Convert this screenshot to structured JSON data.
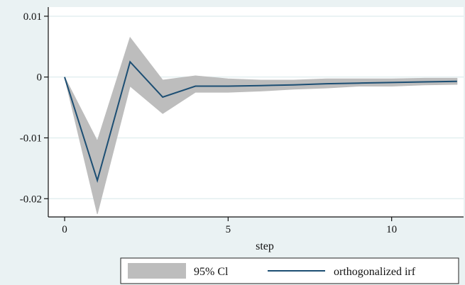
{
  "chart_data": {
    "type": "line",
    "title": "",
    "xlabel": "step",
    "ylabel": "",
    "xlim": [
      -0.5,
      12.2
    ],
    "ylim": [
      -0.023,
      0.0115
    ],
    "x_ticks": [
      {
        "value": 0,
        "label": "0"
      },
      {
        "value": 5,
        "label": "5"
      },
      {
        "value": 10,
        "label": "10"
      }
    ],
    "y_ticks": [
      {
        "value": 0.01,
        "label": "0.01"
      },
      {
        "value": 0,
        "label": "0"
      },
      {
        "value": -0.01,
        "label": "-0.01"
      },
      {
        "value": -0.02,
        "label": "-0.02"
      }
    ],
    "grid": true,
    "legend_position": "bottom",
    "x": [
      0,
      1,
      2,
      3,
      4,
      5,
      6,
      7,
      8,
      9,
      10,
      11,
      12
    ],
    "series": [
      {
        "name": "95% CI",
        "kind": "band",
        "lower": [
          0,
          -0.0225,
          -0.0015,
          -0.006,
          -0.0025,
          -0.0025,
          -0.0023,
          -0.002,
          -0.0018,
          -0.0015,
          -0.0015,
          -0.0013,
          -0.0012
        ],
        "upper": [
          0,
          -0.0105,
          0.0065,
          -0.0005,
          0.0002,
          -0.0003,
          -0.0005,
          -0.0005,
          -0.0003,
          -0.0003,
          -0.0003,
          -0.0002,
          -0.0002
        ],
        "color": "#bdbdbd"
      },
      {
        "name": "orthogonalized irf",
        "kind": "line",
        "values": [
          0,
          -0.017,
          0.0025,
          -0.0033,
          -0.0015,
          -0.0015,
          -0.0014,
          -0.0013,
          -0.0011,
          -0.001,
          -0.0009,
          -0.0008,
          -0.0007
        ],
        "color": "#1c4e73"
      }
    ]
  },
  "legend": {
    "ci_label": "95% Cl",
    "irf_label": "orthogonalized irf"
  },
  "colors": {
    "background": "#eaf2f3",
    "plot_background": "#ffffff",
    "gridline": "#e3eff0"
  }
}
